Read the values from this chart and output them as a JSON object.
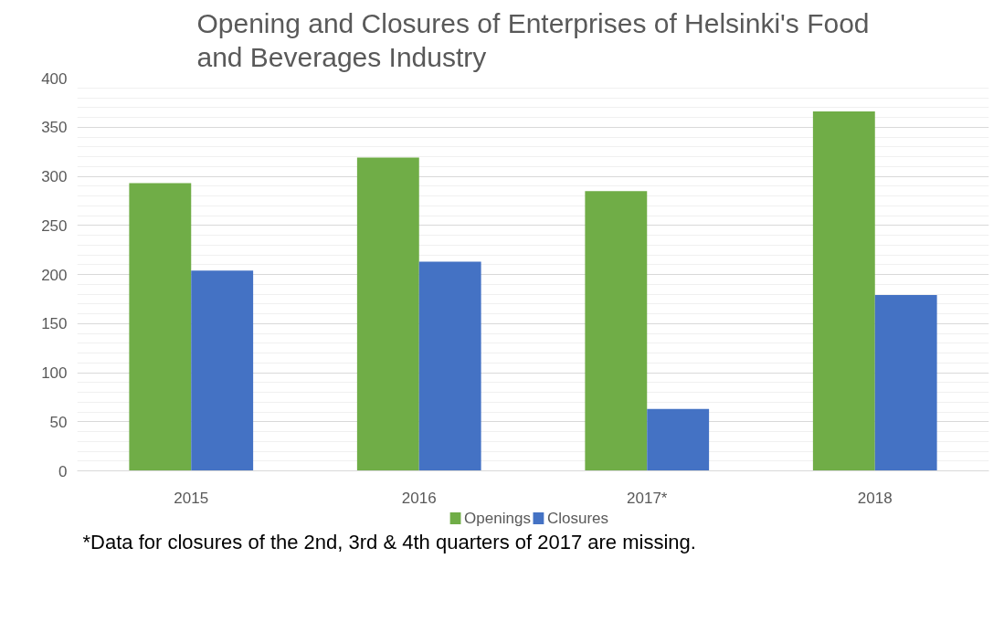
{
  "chart_data": {
    "type": "bar",
    "title": "Opening and Closures of Enterprises of Helsinki's Food\nand Beverages Industry",
    "categories": [
      "2015",
      "2016",
      "2017*",
      "2018"
    ],
    "series": [
      {
        "name": "Openings",
        "color": "#70ad47",
        "values": [
          293,
          319,
          285,
          366
        ]
      },
      {
        "name": "Closures",
        "color": "#4472c4",
        "values": [
          204,
          213,
          63,
          179
        ]
      }
    ],
    "ylim": [
      0,
      400
    ],
    "yticks": [
      0,
      50,
      100,
      150,
      200,
      250,
      300,
      350,
      400
    ],
    "grid": "y",
    "legend": "bottom",
    "annotations": [
      "*Data for closures of the 2nd, 3rd & 4th quarters of 2017 are missing."
    ]
  }
}
